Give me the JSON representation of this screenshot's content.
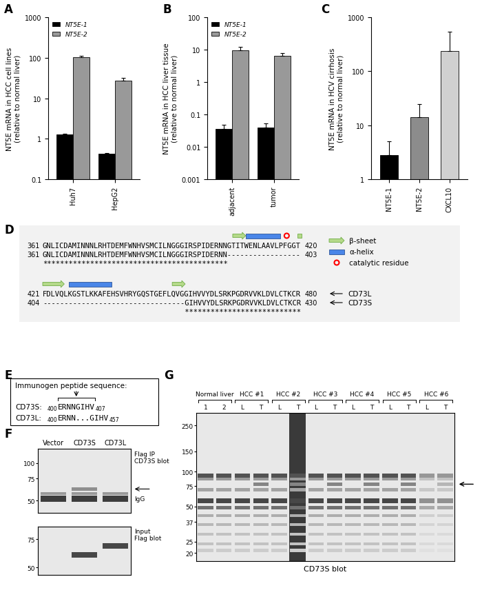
{
  "panel_labels": [
    "A",
    "B",
    "C",
    "D",
    "E",
    "F",
    "G"
  ],
  "chart_data": [
    {
      "type": "bar",
      "ylabel": "NT5E mRNA in HCC cell lines\n(relative to normal liver)",
      "categories": [
        "Huh7",
        "HepG2"
      ],
      "series": [
        {
          "name": "NT5E-1",
          "color": "#000000",
          "values": [
            1.3,
            0.42
          ],
          "errors": [
            0.05,
            0.03
          ]
        },
        {
          "name": "NT5E-2",
          "color": "#999999",
          "values": [
            105,
            27
          ],
          "errors": [
            8,
            5
          ]
        }
      ],
      "log": "y",
      "ylim": [
        0.1,
        1000
      ],
      "yticks": [
        0.1,
        1,
        10,
        100,
        1000
      ],
      "legend": "upper left"
    },
    {
      "type": "bar",
      "ylabel": "NT5E mRNA in HCC liver tissue\n(relative to normal liver)",
      "categories": [
        "adjacent",
        "tumor"
      ],
      "series": [
        {
          "name": "NT5E-1",
          "color": "#000000",
          "values": [
            0.035,
            0.04
          ],
          "errors": [
            0.012,
            0.012
          ]
        },
        {
          "name": "NT5E-2",
          "color": "#999999",
          "values": [
            9.5,
            6.5
          ],
          "errors": [
            2.5,
            1.5
          ]
        }
      ],
      "log": "y",
      "ylim": [
        0.001,
        100
      ],
      "yticks": [
        0.001,
        0.01,
        0.1,
        1,
        10,
        100
      ],
      "legend": "upper left"
    },
    {
      "type": "bar",
      "ylabel": "NT5E mRNA in HCV cirrhosis\n(relative to normal liver)",
      "categories": [
        "NT5E-1",
        "NT5E-2",
        "CXCL10"
      ],
      "values": [
        2.8,
        14,
        240
      ],
      "errors": [
        2.2,
        11,
        300
      ],
      "colors": [
        "#000000",
        "#8c8c8c",
        "#d0d0d0"
      ],
      "log": "y",
      "ylim": [
        1,
        1000
      ],
      "yticks": [
        1,
        10,
        100,
        1000
      ]
    }
  ],
  "alignment": {
    "blocks": [
      {
        "lines": [
          {
            "start": 361,
            "sequence": "GNLICDAMINNNLRHTDEMFWNHVSMCILNGGGIRSPIDERNNGTITWENLAAVLPFGGT",
            "end": 420
          },
          {
            "start": 361,
            "sequence": "GNLICDAMINNNLRHTDEMFWNHVSMCILNGGGIRSPIDERNN-----------------",
            "end": 403
          }
        ],
        "conservation": "*******************************************"
      },
      {
        "lines": [
          {
            "start": 421,
            "sequence": "FDLVQLKGSTLKKAFEHSVHRYGQSTGEFLQVGGIHVVYDLSRKPGDRVVKLDVLCTKCR",
            "end": 480
          },
          {
            "start": 404,
            "sequence": "---------------------------------GIHVVYDLSRKPGDRVVKLDVLCTKCR",
            "end": 430
          }
        ],
        "conservation": "                                 ***************************"
      }
    ],
    "symbol_key": [
      "β-sheet",
      "α-helix",
      "catalytic residue"
    ],
    "row_labels": [
      "CD73L",
      "CD73S"
    ]
  },
  "immunogen": {
    "title": "Immunogen peptide sequence:",
    "sequences": [
      {
        "name": "CD73S:",
        "start": 400,
        "sequence": "ERNNGIHV",
        "end": 407
      },
      {
        "name": "CD73L:",
        "start": 400,
        "sequence": "ERNN...GIHV",
        "end": 457
      }
    ]
  },
  "blot_f": {
    "lanes": [
      "Vector",
      "CD73S",
      "CD73L"
    ],
    "blots": [
      {
        "label": "Flag IP\nCD73S blot",
        "annotation": "IgG",
        "ylim": [
          40,
          130
        ],
        "yticks": [
          50,
          75,
          100
        ],
        "tick_labels": "y"
      },
      {
        "label": "Input\nFlag blot",
        "ylim": [
          45,
          90
        ],
        "yticks": [
          50,
          75
        ],
        "tick_labels": "y"
      }
    ]
  },
  "blot_g": {
    "lane_groups": [
      {
        "name": "Normal liver",
        "lanes": [
          "1",
          "2"
        ]
      },
      {
        "name": "HCC #1",
        "lanes": [
          "L",
          "T"
        ]
      },
      {
        "name": "HCC #2",
        "lanes": [
          "L",
          "T"
        ]
      },
      {
        "name": "HCC #3",
        "lanes": [
          "L",
          "T"
        ]
      },
      {
        "name": "HCC #4",
        "lanes": [
          "L",
          "T"
        ]
      },
      {
        "name": "HCC #5",
        "lanes": [
          "L",
          "T"
        ]
      },
      {
        "name": "HCC #6",
        "lanes": [
          "L",
          "T"
        ]
      }
    ],
    "ylim": [
      17,
      320
    ],
    "yticks": [
      20,
      25,
      37,
      50,
      75,
      100,
      150,
      250
    ],
    "xlabel": "CD73S blot",
    "tick_labels": "y"
  }
}
